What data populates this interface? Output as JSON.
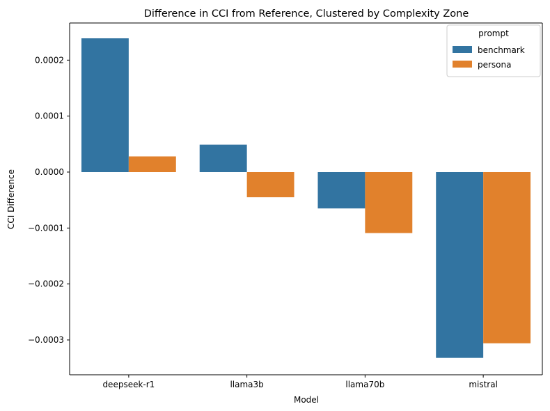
{
  "chart_data": {
    "type": "bar",
    "title": "Difference in CCI from Reference, Clustered by Complexity Zone",
    "xlabel": "Model",
    "ylabel": "CCI Difference",
    "categories": [
      "deepseek-r1",
      "llama3b",
      "llama70b",
      "mistral"
    ],
    "series": [
      {
        "name": "benchmark",
        "color": "#3274a1",
        "values": [
          0.000239,
          4.9e-05,
          -6.5e-05,
          -0.000332
        ]
      },
      {
        "name": "persona",
        "color": "#e1812c",
        "values": [
          2.8e-05,
          -4.5e-05,
          -0.000109,
          -0.000306
        ]
      }
    ],
    "ylim": [
      -0.000359,
      0.000239
    ],
    "yticks": [
      -0.0003,
      -0.0002,
      -0.0001,
      0.0,
      0.0001,
      0.0002
    ],
    "ytick_labels": [
      "−0.0003",
      "−0.0002",
      "−0.0001",
      "0.0000",
      "0.0001",
      "0.0002"
    ],
    "grid": false,
    "legend": {
      "title": "prompt",
      "placement": "top-right"
    }
  }
}
